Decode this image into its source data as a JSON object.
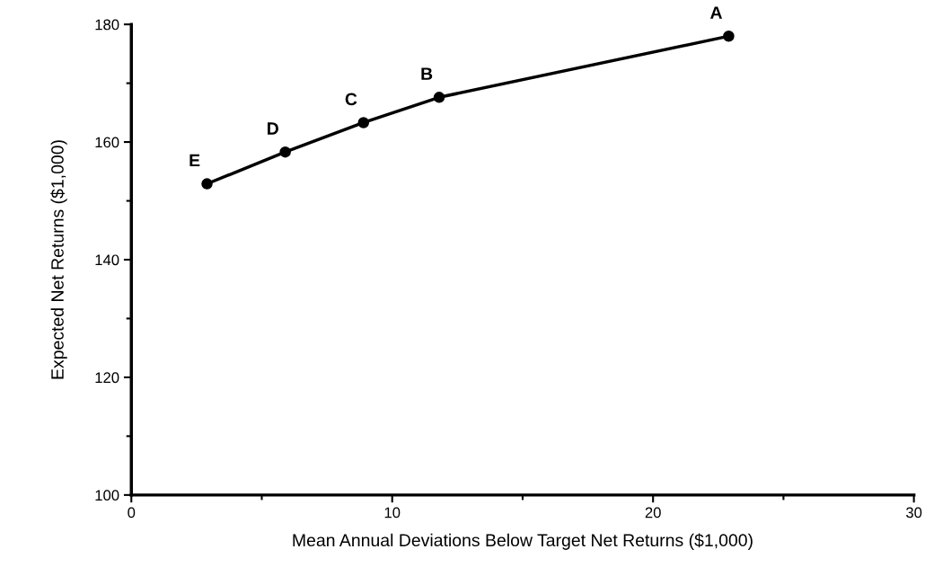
{
  "chart_data": {
    "type": "line",
    "xlabel": "Mean Annual Deviations Below Target Net Returns ($1,000)",
    "ylabel": "Expected Net Returns ($1,000)",
    "x": [
      2.9,
      5.9,
      8.9,
      11.8,
      22.9
    ],
    "series": [
      {
        "color": "#000000",
        "values": [
          152.9,
          158.3,
          163.3,
          167.6,
          178
        ]
      }
    ],
    "marker": "circle",
    "line_style": "solid",
    "xlim": [
      0,
      30
    ],
    "xticks": [
      0,
      10,
      20,
      30
    ],
    "ylim": [
      100,
      180
    ],
    "yticks": [
      100,
      120,
      140,
      160,
      180
    ],
    "grid": false,
    "legend": false,
    "annotations": [
      {
        "text": "E",
        "x": 2.9,
        "y": 152.9
      },
      {
        "text": "D",
        "x": 5.9,
        "y": 158.3
      },
      {
        "text": "C",
        "x": 8.9,
        "y": 163.3
      },
      {
        "text": "B",
        "x": 11.8,
        "y": 167.6
      },
      {
        "text": "A",
        "x": 22.9,
        "y": 178
      }
    ]
  }
}
